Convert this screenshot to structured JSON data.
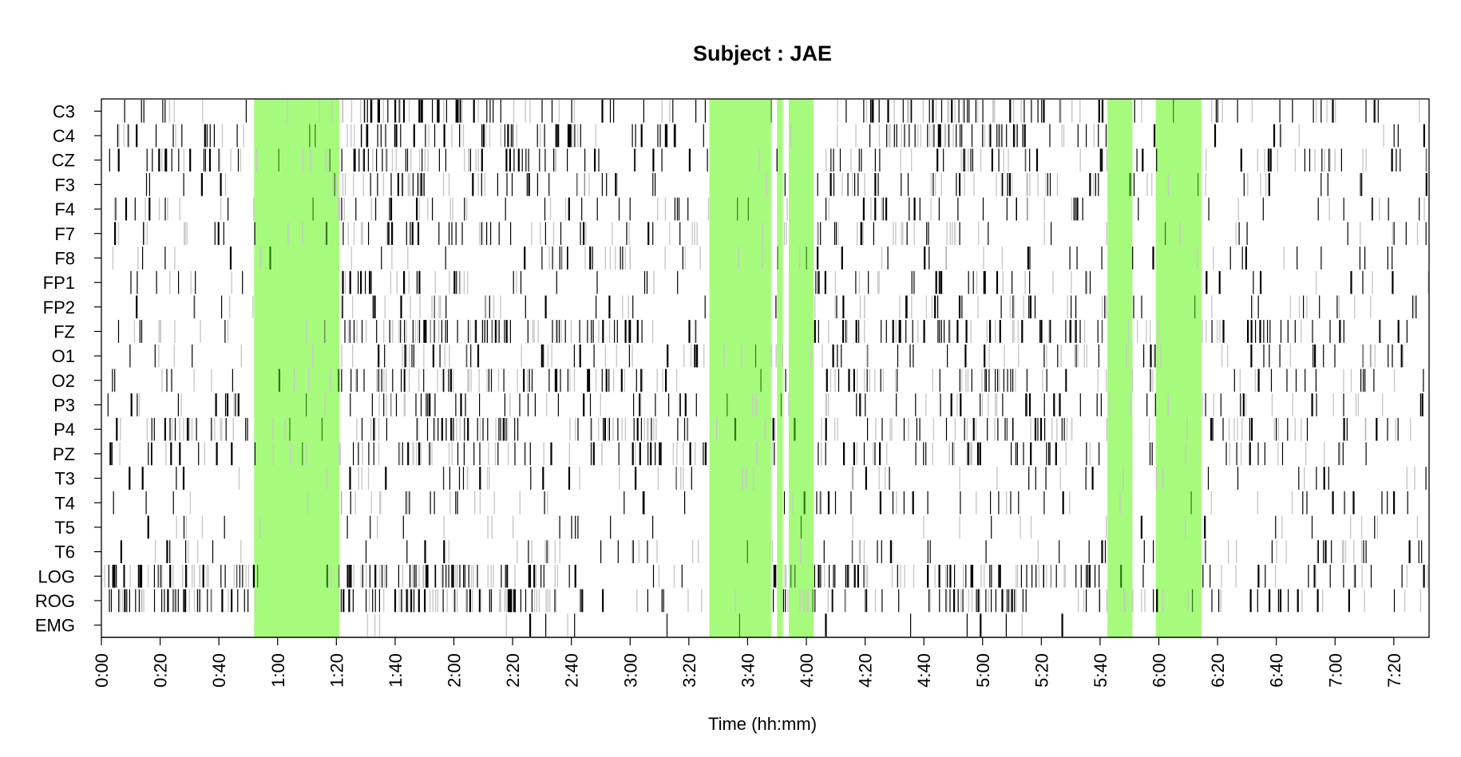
{
  "chart_data": {
    "type": "heatmap",
    "title": "Subject : JAE",
    "xlabel": "Time (hh:mm)",
    "ylabel": "",
    "x_unit": "minutes",
    "xlim_minutes": [
      0,
      452
    ],
    "channels": [
      "C3",
      "C4",
      "CZ",
      "F3",
      "F4",
      "F7",
      "F8",
      "FP1",
      "FP2",
      "FZ",
      "O1",
      "O2",
      "P3",
      "P4",
      "PZ",
      "T3",
      "T4",
      "T5",
      "T6",
      "LOG",
      "ROG",
      "EMG"
    ],
    "x_ticks": [
      {
        "label": "0:00",
        "minutes": 0
      },
      {
        "label": "0:20",
        "minutes": 20
      },
      {
        "label": "0:40",
        "minutes": 40
      },
      {
        "label": "1:00",
        "minutes": 60
      },
      {
        "label": "1:20",
        "minutes": 80
      },
      {
        "label": "1:40",
        "minutes": 100
      },
      {
        "label": "2:00",
        "minutes": 120
      },
      {
        "label": "2:20",
        "minutes": 140
      },
      {
        "label": "2:40",
        "minutes": 160
      },
      {
        "label": "3:00",
        "minutes": 180
      },
      {
        "label": "3:20",
        "minutes": 200
      },
      {
        "label": "3:40",
        "minutes": 220
      },
      {
        "label": "4:00",
        "minutes": 240
      },
      {
        "label": "4:20",
        "minutes": 260
      },
      {
        "label": "4:40",
        "minutes": 280
      },
      {
        "label": "5:00",
        "minutes": 300
      },
      {
        "label": "5:20",
        "minutes": 320
      },
      {
        "label": "5:40",
        "minutes": 340
      },
      {
        "label": "6:00",
        "minutes": 360
      },
      {
        "label": "6:20",
        "minutes": 380
      },
      {
        "label": "6:40",
        "minutes": 400
      },
      {
        "label": "7:00",
        "minutes": 420
      },
      {
        "label": "7:20",
        "minutes": 440
      }
    ],
    "highlighted_intervals_minutes": [
      [
        52,
        81
      ],
      [
        207,
        228
      ],
      [
        230,
        232
      ],
      [
        234,
        242.5
      ],
      [
        342.5,
        351
      ],
      [
        359,
        374.5
      ]
    ],
    "highlight_color": "#a6fb7c",
    "event_colors": {
      "strong": "#000000",
      "weak": "#c8c8c8"
    },
    "density_profiles": {
      "C3": [
        [
          0,
          0.15
        ],
        [
          20,
          0.2
        ],
        [
          30,
          0.4
        ],
        [
          40,
          0.2
        ],
        [
          52,
          0.05
        ],
        [
          81,
          0.4
        ],
        [
          92,
          0.55
        ],
        [
          120,
          0.35
        ],
        [
          150,
          0.2
        ],
        [
          170,
          0.3
        ],
        [
          200,
          0.25
        ],
        [
          243,
          0.25
        ],
        [
          260,
          0.3
        ],
        [
          300,
          0.45
        ],
        [
          320,
          0.35
        ],
        [
          340,
          0.2
        ],
        [
          380,
          0.15
        ],
        [
          452,
          0.1
        ]
      ],
      "C4": [
        [
          0,
          0.15
        ],
        [
          20,
          0.15
        ],
        [
          52,
          0.1
        ],
        [
          81,
          0.35
        ],
        [
          120,
          0.45
        ],
        [
          150,
          0.25
        ],
        [
          170,
          0.2
        ],
        [
          207,
          0.2
        ],
        [
          243,
          0.3
        ],
        [
          300,
          0.4
        ],
        [
          340,
          0.2
        ],
        [
          380,
          0.15
        ],
        [
          452,
          0.12
        ]
      ],
      "CZ": [
        [
          0,
          0.2
        ],
        [
          30,
          0.35
        ],
        [
          52,
          0.2
        ],
        [
          81,
          0.45
        ],
        [
          120,
          0.4
        ],
        [
          150,
          0.25
        ],
        [
          180,
          0.2
        ],
        [
          207,
          0.2
        ],
        [
          243,
          0.3
        ],
        [
          280,
          0.35
        ],
        [
          320,
          0.3
        ],
        [
          360,
          0.25
        ],
        [
          400,
          0.2
        ],
        [
          452,
          0.15
        ]
      ],
      "F3": [
        [
          0,
          0.12
        ],
        [
          30,
          0.25
        ],
        [
          52,
          0.1
        ],
        [
          81,
          0.3
        ],
        [
          120,
          0.3
        ],
        [
          150,
          0.2
        ],
        [
          200,
          0.15
        ],
        [
          243,
          0.25
        ],
        [
          300,
          0.3
        ],
        [
          340,
          0.2
        ],
        [
          380,
          0.12
        ],
        [
          452,
          0.1
        ]
      ],
      "F4": [
        [
          0,
          0.08
        ],
        [
          30,
          0.15
        ],
        [
          52,
          0.05
        ],
        [
          81,
          0.25
        ],
        [
          120,
          0.3
        ],
        [
          160,
          0.2
        ],
        [
          200,
          0.15
        ],
        [
          243,
          0.2
        ],
        [
          300,
          0.25
        ],
        [
          340,
          0.15
        ],
        [
          400,
          0.1
        ],
        [
          452,
          0.08
        ]
      ],
      "F7": [
        [
          0,
          0.1
        ],
        [
          30,
          0.3
        ],
        [
          52,
          0.1
        ],
        [
          81,
          0.35
        ],
        [
          120,
          0.35
        ],
        [
          160,
          0.2
        ],
        [
          207,
          0.15
        ],
        [
          243,
          0.2
        ],
        [
          300,
          0.25
        ],
        [
          340,
          0.15
        ],
        [
          400,
          0.1
        ],
        [
          452,
          0.1
        ]
      ],
      "F8": [
        [
          0,
          0.05
        ],
        [
          50,
          0.05
        ],
        [
          81,
          0.12
        ],
        [
          140,
          0.08
        ],
        [
          150,
          0.3
        ],
        [
          200,
          0.15
        ],
        [
          243,
          0.1
        ],
        [
          300,
          0.12
        ],
        [
          340,
          0.15
        ],
        [
          400,
          0.08
        ],
        [
          452,
          0.08
        ]
      ],
      "FP1": [
        [
          0,
          0.05
        ],
        [
          30,
          0.12
        ],
        [
          52,
          0.05
        ],
        [
          81,
          0.2
        ],
        [
          140,
          0.2
        ],
        [
          160,
          0.05
        ],
        [
          200,
          0.05
        ],
        [
          243,
          0.15
        ],
        [
          300,
          0.2
        ],
        [
          340,
          0.12
        ],
        [
          400,
          0.1
        ],
        [
          452,
          0.08
        ]
      ],
      "FP2": [
        [
          0,
          0.05
        ],
        [
          30,
          0.15
        ],
        [
          52,
          0.05
        ],
        [
          81,
          0.25
        ],
        [
          140,
          0.2
        ],
        [
          160,
          0.1
        ],
        [
          207,
          0.1
        ],
        [
          243,
          0.25
        ],
        [
          300,
          0.3
        ],
        [
          340,
          0.2
        ],
        [
          400,
          0.1
        ],
        [
          452,
          0.08
        ]
      ],
      "FZ": [
        [
          0,
          0.15
        ],
        [
          30,
          0.25
        ],
        [
          52,
          0.15
        ],
        [
          81,
          0.35
        ],
        [
          140,
          0.4
        ],
        [
          180,
          0.35
        ],
        [
          207,
          0.2
        ],
        [
          243,
          0.3
        ],
        [
          300,
          0.4
        ],
        [
          340,
          0.3
        ],
        [
          380,
          0.25
        ],
        [
          452,
          0.15
        ]
      ],
      "O1": [
        [
          0,
          0.1
        ],
        [
          30,
          0.2
        ],
        [
          52,
          0.05
        ],
        [
          81,
          0.35
        ],
        [
          140,
          0.25
        ],
        [
          180,
          0.2
        ],
        [
          243,
          0.2
        ],
        [
          300,
          0.25
        ],
        [
          340,
          0.2
        ],
        [
          400,
          0.15
        ],
        [
          452,
          0.1
        ]
      ],
      "O2": [
        [
          0,
          0.15
        ],
        [
          30,
          0.25
        ],
        [
          52,
          0.05
        ],
        [
          81,
          0.4
        ],
        [
          140,
          0.3
        ],
        [
          180,
          0.25
        ],
        [
          243,
          0.25
        ],
        [
          300,
          0.3
        ],
        [
          340,
          0.2
        ],
        [
          400,
          0.2
        ],
        [
          452,
          0.15
        ]
      ],
      "P3": [
        [
          0,
          0.1
        ],
        [
          30,
          0.2
        ],
        [
          52,
          0.1
        ],
        [
          81,
          0.35
        ],
        [
          140,
          0.3
        ],
        [
          180,
          0.2
        ],
        [
          243,
          0.2
        ],
        [
          300,
          0.25
        ],
        [
          340,
          0.2
        ],
        [
          400,
          0.15
        ],
        [
          452,
          0.1
        ]
      ],
      "P4": [
        [
          0,
          0.15
        ],
        [
          30,
          0.35
        ],
        [
          52,
          0.15
        ],
        [
          81,
          0.5
        ],
        [
          140,
          0.4
        ],
        [
          180,
          0.3
        ],
        [
          243,
          0.3
        ],
        [
          300,
          0.35
        ],
        [
          340,
          0.25
        ],
        [
          400,
          0.2
        ],
        [
          452,
          0.15
        ]
      ],
      "PZ": [
        [
          0,
          0.12
        ],
        [
          30,
          0.3
        ],
        [
          52,
          0.1
        ],
        [
          81,
          0.4
        ],
        [
          140,
          0.35
        ],
        [
          180,
          0.25
        ],
        [
          243,
          0.25
        ],
        [
          300,
          0.3
        ],
        [
          340,
          0.2
        ],
        [
          400,
          0.15
        ],
        [
          452,
          0.12
        ]
      ],
      "T3": [
        [
          0,
          0.08
        ],
        [
          30,
          0.15
        ],
        [
          52,
          0.05
        ],
        [
          81,
          0.25
        ],
        [
          140,
          0.2
        ],
        [
          180,
          0.12
        ],
        [
          243,
          0.15
        ],
        [
          300,
          0.2
        ],
        [
          340,
          0.15
        ],
        [
          400,
          0.15
        ],
        [
          452,
          0.1
        ]
      ],
      "T4": [
        [
          0,
          0.05
        ],
        [
          30,
          0.12
        ],
        [
          52,
          0.05
        ],
        [
          81,
          0.2
        ],
        [
          140,
          0.2
        ],
        [
          180,
          0.12
        ],
        [
          243,
          0.15
        ],
        [
          300,
          0.2
        ],
        [
          340,
          0.12
        ],
        [
          400,
          0.15
        ],
        [
          452,
          0.12
        ]
      ],
      "T5": [
        [
          0,
          0.03
        ],
        [
          30,
          0.08
        ],
        [
          52,
          0.03
        ],
        [
          81,
          0.1
        ],
        [
          140,
          0.1
        ],
        [
          180,
          0.05
        ],
        [
          243,
          0.05
        ],
        [
          300,
          0.08
        ],
        [
          340,
          0.08
        ],
        [
          400,
          0.12
        ],
        [
          452,
          0.1
        ]
      ],
      "T6": [
        [
          0,
          0.04
        ],
        [
          30,
          0.1
        ],
        [
          52,
          0.04
        ],
        [
          81,
          0.15
        ],
        [
          140,
          0.15
        ],
        [
          180,
          0.08
        ],
        [
          243,
          0.12
        ],
        [
          300,
          0.15
        ],
        [
          340,
          0.1
        ],
        [
          400,
          0.15
        ],
        [
          452,
          0.12
        ]
      ],
      "LOG": [
        [
          0,
          0.55
        ],
        [
          50,
          0.6
        ],
        [
          52,
          0.2
        ],
        [
          81,
          0.65
        ],
        [
          150,
          0.55
        ],
        [
          160,
          0.1
        ],
        [
          200,
          0.1
        ],
        [
          243,
          0.5
        ],
        [
          270,
          0.3
        ],
        [
          300,
          0.6
        ],
        [
          340,
          0.35
        ],
        [
          380,
          0.25
        ],
        [
          452,
          0.15
        ]
      ],
      "ROG": [
        [
          0,
          0.5
        ],
        [
          50,
          0.55
        ],
        [
          52,
          0.2
        ],
        [
          81,
          0.6
        ],
        [
          150,
          0.5
        ],
        [
          160,
          0.1
        ],
        [
          200,
          0.1
        ],
        [
          243,
          0.6
        ],
        [
          270,
          0.3
        ],
        [
          300,
          0.55
        ],
        [
          340,
          0.3
        ],
        [
          380,
          0.25
        ],
        [
          452,
          0.12
        ]
      ],
      "EMG": [
        [
          0,
          0.02
        ],
        [
          52,
          0.02
        ],
        [
          81,
          0.04
        ],
        [
          243,
          0.02
        ],
        [
          280,
          0.05
        ],
        [
          300,
          0.04
        ],
        [
          340,
          0.03
        ],
        [
          452,
          0.02
        ]
      ]
    }
  }
}
